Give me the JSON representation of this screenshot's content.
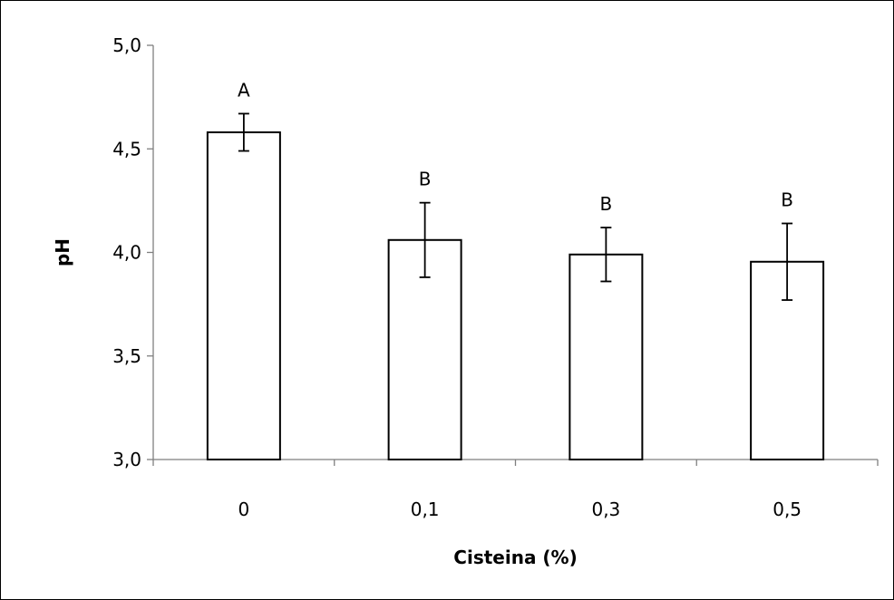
{
  "chart_data": {
    "type": "bar",
    "title": "",
    "xlabel": "Cisteina (%)",
    "ylabel": "pH",
    "categories": [
      "0",
      "0,1",
      "0,3",
      "0,5"
    ],
    "values": [
      4.58,
      4.06,
      3.99,
      3.955
    ],
    "errors": [
      0.09,
      0.18,
      0.13,
      0.185
    ],
    "significance_labels": [
      "A",
      "B",
      "B",
      "B"
    ],
    "ylim": [
      3.0,
      5.0
    ],
    "yticks": [
      3.0,
      3.5,
      4.0,
      4.5,
      5.0
    ],
    "ytick_labels": [
      "3,0",
      "3,5",
      "4,0",
      "4,5",
      "5,0"
    ],
    "grid": false,
    "legend": "none",
    "bar_fill": "#ffffff",
    "bar_stroke": "#000000"
  }
}
